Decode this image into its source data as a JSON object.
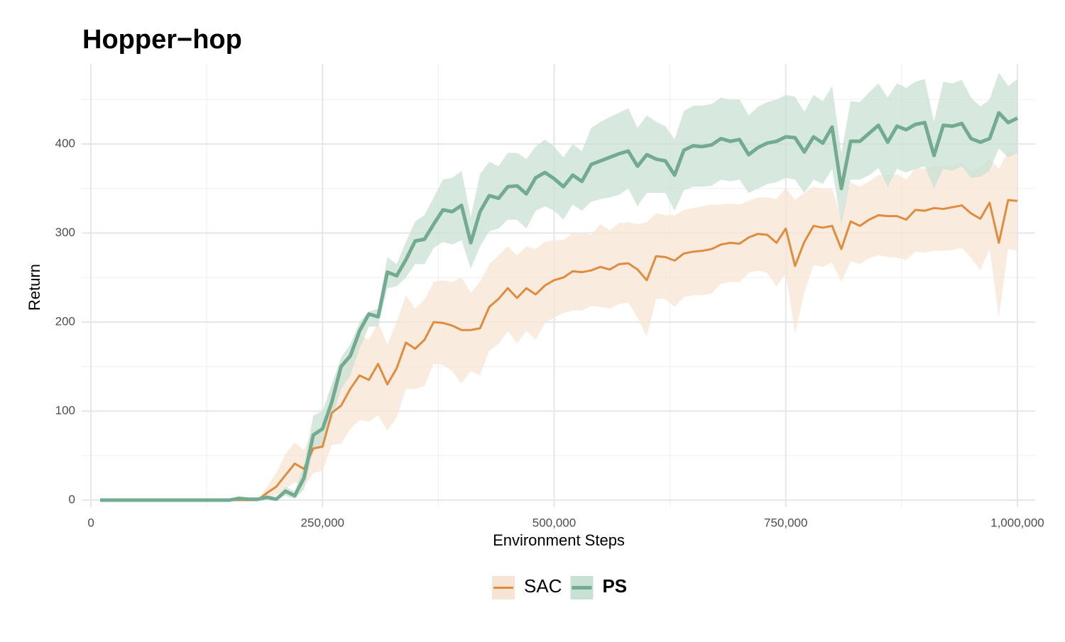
{
  "chart_data": {
    "type": "line",
    "title": "Hopper−hop",
    "xlabel": "Environment Steps",
    "ylabel": "Return",
    "xlim": [
      -10000,
      1010000
    ],
    "ylim": [
      -8,
      490
    ],
    "xticks": [
      0,
      {
        "value": 250000,
        "label": "250,000"
      },
      {
        "value": 500000,
        "label": "500,000"
      },
      {
        "value": 750000,
        "label": "750,000"
      },
      {
        "value": 1000000,
        "label": "1,000,000"
      }
    ],
    "yticks": [
      0,
      100,
      200,
      300,
      400
    ],
    "grid": true,
    "legend": "bottom",
    "x": [
      10000,
      20000,
      30000,
      40000,
      50000,
      60000,
      70000,
      80000,
      90000,
      100000,
      110000,
      120000,
      130000,
      140000,
      150000,
      160000,
      170000,
      180000,
      190000,
      200000,
      210000,
      220000,
      230000,
      240000,
      250000,
      260000,
      270000,
      280000,
      290000,
      300000,
      310000,
      320000,
      330000,
      340000,
      350000,
      360000,
      370000,
      380000,
      390000,
      400000,
      410000,
      420000,
      430000,
      440000,
      450000,
      460000,
      470000,
      480000,
      490000,
      500000,
      510000,
      520000,
      530000,
      540000,
      550000,
      560000,
      570000,
      580000,
      590000,
      600000,
      610000,
      620000,
      630000,
      640000,
      650000,
      660000,
      670000,
      680000,
      690000,
      700000,
      710000,
      720000,
      730000,
      740000,
      750000,
      760000,
      770000,
      780000,
      790000,
      800000,
      810000,
      820000,
      830000,
      840000,
      850000,
      860000,
      870000,
      880000,
      890000,
      900000,
      910000,
      920000,
      930000,
      940000,
      950000,
      960000,
      970000,
      980000,
      990000,
      1000000
    ],
    "series": [
      {
        "name": "SAC",
        "color": "#e08c3e",
        "band_color": "#f8e4d4",
        "line_width": 3,
        "font_weight": "normal",
        "values": [
          0,
          0,
          0,
          0,
          0,
          0,
          0,
          0,
          0,
          0,
          0,
          0,
          0,
          0,
          0,
          0,
          0,
          0,
          8,
          15,
          28,
          41,
          35,
          58,
          60,
          98,
          106,
          125,
          140,
          135,
          153,
          130,
          148,
          177,
          170,
          180,
          200,
          199,
          196,
          191,
          191,
          193,
          217,
          226,
          238,
          227,
          238,
          231,
          241,
          247,
          250,
          257,
          256,
          258,
          262,
          259,
          265,
          266,
          259,
          247,
          274,
          273,
          269,
          277,
          279,
          280,
          282,
          287,
          289,
          288,
          295,
          299,
          298,
          289,
          305,
          263,
          290,
          308,
          306,
          308,
          282,
          313,
          308,
          315,
          320,
          319,
          319,
          315,
          326,
          325,
          328,
          327,
          329,
          331,
          322,
          316,
          334,
          289,
          337,
          336
        ],
        "lower": [
          0,
          0,
          0,
          0,
          0,
          0,
          0,
          0,
          0,
          0,
          0,
          0,
          0,
          0,
          0,
          0,
          0,
          0,
          2,
          5,
          12,
          20,
          15,
          30,
          33,
          62,
          63,
          80,
          90,
          88,
          95,
          78,
          93,
          125,
          125,
          128,
          153,
          152,
          145,
          131,
          145,
          140,
          168,
          175,
          190,
          176,
          190,
          180,
          199,
          205,
          210,
          213,
          213,
          218,
          217,
          215,
          220,
          222,
          205,
          184,
          226,
          226,
          217,
          228,
          230,
          230,
          232,
          243,
          245,
          245,
          255,
          258,
          255,
          240,
          255,
          187,
          233,
          264,
          262,
          267,
          245,
          268,
          265,
          272,
          275,
          273,
          272,
          270,
          279,
          278,
          280,
          280,
          281,
          283,
          272,
          258,
          282,
          205,
          282,
          280
        ],
        "upper": [
          0,
          0,
          0,
          0,
          0,
          0,
          0,
          0,
          0,
          0,
          0,
          0,
          0,
          0,
          0,
          0,
          0,
          0,
          15,
          30,
          52,
          65,
          56,
          80,
          82,
          130,
          150,
          165,
          185,
          180,
          200,
          175,
          200,
          230,
          215,
          225,
          245,
          247,
          245,
          250,
          233,
          245,
          265,
          275,
          285,
          275,
          285,
          282,
          290,
          292,
          292,
          300,
          300,
          298,
          310,
          303,
          311,
          312,
          310,
          312,
          322,
          320,
          320,
          326,
          328,
          330,
          332,
          332,
          333,
          332,
          336,
          340,
          340,
          338,
          351,
          337,
          345,
          352,
          350,
          350,
          318,
          357,
          352,
          358,
          365,
          365,
          366,
          360,
          373,
          372,
          375,
          375,
          376,
          379,
          370,
          373,
          384,
          372,
          392,
          390
        ]
      },
      {
        "name": "PS",
        "color": "#72ab90",
        "band_color": "#c9e0d4",
        "line_width": 5,
        "font_weight": "bold",
        "values": [
          0,
          0,
          0,
          0,
          0,
          0,
          0,
          0,
          0,
          0,
          0,
          0,
          0,
          0,
          0,
          2,
          1,
          1,
          3,
          1,
          10,
          5,
          25,
          73,
          80,
          110,
          150,
          162,
          190,
          209,
          206,
          256,
          252,
          270,
          291,
          293,
          310,
          326,
          324,
          331,
          289,
          324,
          342,
          339,
          352,
          353,
          344,
          362,
          368,
          361,
          352,
          365,
          358,
          377,
          381,
          385,
          389,
          392,
          375,
          388,
          383,
          381,
          365,
          393,
          398,
          397,
          399,
          406,
          403,
          405,
          388,
          396,
          401,
          403,
          408,
          407,
          391,
          408,
          401,
          419,
          350,
          403,
          403,
          412,
          421,
          402,
          420,
          416,
          422,
          424,
          387,
          421,
          420,
          423,
          406,
          402,
          406,
          435,
          424,
          429
        ],
        "lower": [
          0,
          0,
          0,
          0,
          0,
          0,
          0,
          0,
          0,
          0,
          0,
          0,
          0,
          0,
          0,
          0,
          0,
          0,
          1,
          0,
          5,
          1,
          12,
          55,
          62,
          90,
          125,
          140,
          170,
          195,
          195,
          238,
          240,
          250,
          265,
          265,
          283,
          290,
          287,
          292,
          260,
          285,
          302,
          305,
          315,
          315,
          305,
          325,
          330,
          325,
          315,
          332,
          325,
          335,
          338,
          340,
          343,
          350,
          330,
          345,
          345,
          345,
          325,
          348,
          352,
          352,
          353,
          360,
          358,
          360,
          345,
          350,
          355,
          357,
          362,
          360,
          345,
          360,
          355,
          372,
          310,
          360,
          360,
          365,
          373,
          352,
          372,
          368,
          372,
          375,
          350,
          372,
          370,
          375,
          362,
          363,
          370,
          395,
          385,
          390
        ],
        "upper": [
          0,
          0,
          0,
          0,
          0,
          0,
          0,
          0,
          0,
          0,
          0,
          0,
          0,
          0,
          0,
          3,
          2,
          2,
          6,
          3,
          15,
          10,
          40,
          95,
          100,
          130,
          160,
          175,
          200,
          212,
          215,
          273,
          265,
          290,
          313,
          320,
          340,
          360,
          362,
          370,
          318,
          366,
          380,
          375,
          390,
          390,
          383,
          397,
          405,
          397,
          385,
          400,
          392,
          418,
          425,
          430,
          435,
          440,
          418,
          432,
          425,
          420,
          405,
          437,
          443,
          443,
          445,
          452,
          450,
          450,
          432,
          442,
          447,
          450,
          455,
          453,
          436,
          455,
          448,
          465,
          390,
          448,
          447,
          458,
          468,
          452,
          468,
          463,
          470,
          473,
          425,
          470,
          468,
          472,
          452,
          442,
          450,
          480,
          465,
          473
        ]
      }
    ]
  }
}
